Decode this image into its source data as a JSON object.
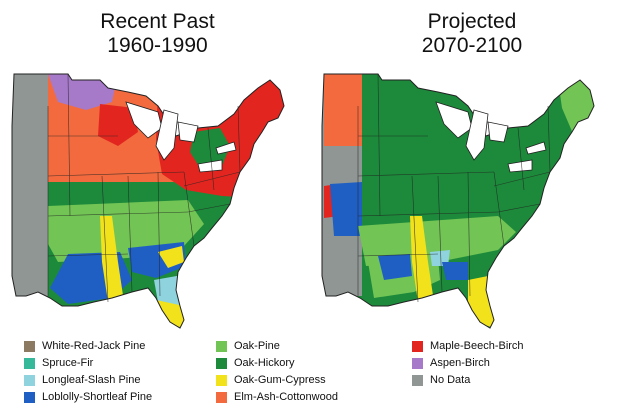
{
  "titles": {
    "left": {
      "line1": "Recent Past",
      "line2": "1960-1990"
    },
    "right": {
      "line1": "Projected",
      "line2": "2070-2100"
    }
  },
  "legend": [
    {
      "label": "White-Red-Jack Pine",
      "color": "#8c7a63"
    },
    {
      "label": "Spruce-Fir",
      "color": "#36b89a"
    },
    {
      "label": "Longleaf-Slash Pine",
      "color": "#8fd3de"
    },
    {
      "label": "Loblolly-Shortleaf Pine",
      "color": "#1f5fc4"
    },
    {
      "label": "Oak-Pine",
      "color": "#72c455"
    },
    {
      "label": "Oak-Hickory",
      "color": "#1c8a3a"
    },
    {
      "label": "Oak-Gum-Cypress",
      "color": "#f2e21b"
    },
    {
      "label": "Elm-Ash-Cottonwood",
      "color": "#f26a3e"
    },
    {
      "label": "Maple-Beech-Birch",
      "color": "#e2261f"
    },
    {
      "label": "Aspen-Birch",
      "color": "#a67ac9"
    },
    {
      "label": "No Data",
      "color": "#8f9693"
    }
  ]
}
